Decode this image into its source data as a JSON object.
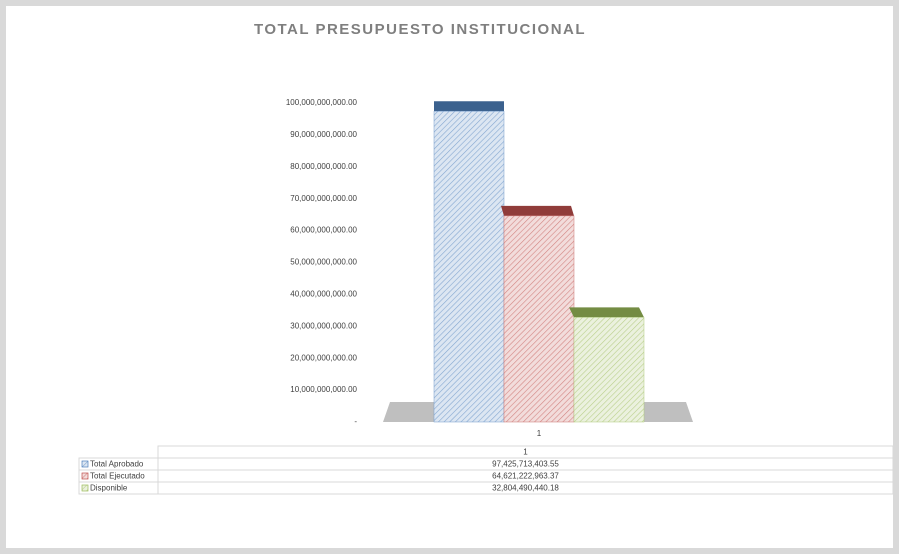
{
  "chart_data": {
    "type": "bar3d",
    "title": "TOTAL PRESUPUESTO INSTITUCIONAL",
    "categories": [
      "1"
    ],
    "series": [
      {
        "name": "Total Aprobado",
        "color": "#4f81bd",
        "values": [
          97425713403.55
        ],
        "value_labels": [
          "97,425,713,403.55"
        ]
      },
      {
        "name": "Total Ejecutado",
        "color": "#c0504d",
        "values": [
          64621222963.37
        ],
        "value_labels": [
          "64,621,222,963.37"
        ]
      },
      {
        "name": "Disponible",
        "color": "#9bbb59",
        "values": [
          32804490440.18
        ],
        "value_labels": [
          "32,804,490,440.18"
        ]
      }
    ],
    "ylim": [
      0,
      100000000000
    ],
    "yticks": [
      {
        "value": 0,
        "label": "-"
      },
      {
        "value": 10000000000,
        "label": "10,000,000,000.00"
      },
      {
        "value": 20000000000,
        "label": "20,000,000,000.00"
      },
      {
        "value": 30000000000,
        "label": "30,000,000,000.00"
      },
      {
        "value": 40000000000,
        "label": "40,000,000,000.00"
      },
      {
        "value": 50000000000,
        "label": "50,000,000,000.00"
      },
      {
        "value": 60000000000,
        "label": "60,000,000,000.00"
      },
      {
        "value": 70000000000,
        "label": "70,000,000,000.00"
      },
      {
        "value": 80000000000,
        "label": "80,000,000,000.00"
      },
      {
        "value": 90000000000,
        "label": "90,000,000,000.00"
      },
      {
        "value": 100000000000,
        "label": "100,000,000,000.00"
      }
    ]
  }
}
